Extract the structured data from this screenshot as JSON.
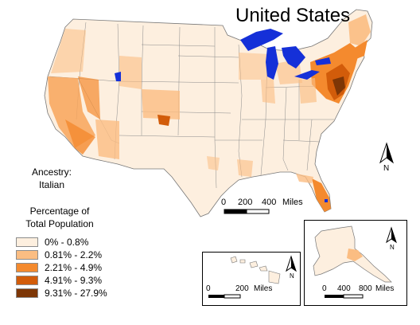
{
  "map_title": "United States",
  "ancestry": {
    "line1": "Ancestry:",
    "line2": "Italian"
  },
  "legend": {
    "title_line1": "Percentage of",
    "title_line2": "Total Population",
    "items": [
      {
        "label": "0% - 0.8%",
        "color": "#fdefdf"
      },
      {
        "label": "0.81% - 2.2%",
        "color": "#fbbd82"
      },
      {
        "label": "2.21% - 4.9%",
        "color": "#f48a2e"
      },
      {
        "label": "4.91% - 9.3%",
        "color": "#d25c0a"
      },
      {
        "label": "9.31% - 27.9%",
        "color": "#7d3606"
      }
    ]
  },
  "colors": {
    "water": "#1530d8",
    "state_border": "#888888"
  },
  "north_arrow_label": "N",
  "main_scale": {
    "labels": [
      "0",
      "200",
      "400"
    ],
    "unit": "Miles"
  },
  "hawaii_scale": {
    "labels": [
      "0",
      "200"
    ],
    "unit": "Miles"
  },
  "alaska_scale": {
    "labels": [
      "0",
      "400",
      "800"
    ],
    "unit": "Miles"
  }
}
